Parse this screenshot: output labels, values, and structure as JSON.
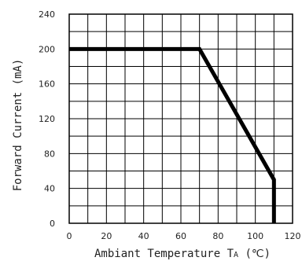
{
  "chart_data": {
    "type": "line",
    "xlabel": "Ambiant Temperature T",
    "xlabel_subscript": "A",
    "xlabel_unit": " (℃)",
    "ylabel": "Forward Current (mA)",
    "xlim": [
      0,
      120
    ],
    "ylim": [
      0,
      240
    ],
    "x_ticks": [
      0,
      20,
      40,
      60,
      80,
      100,
      120
    ],
    "y_ticks": [
      0,
      40,
      80,
      120,
      160,
      200,
      240
    ],
    "x_tick_labels": [
      "0",
      "20",
      "40",
      "60",
      "80",
      "100",
      "120"
    ],
    "y_tick_labels": [
      "0",
      "40",
      "80",
      "120",
      "160",
      "200",
      "240"
    ],
    "grid": true,
    "grid_x_step": 10,
    "grid_y_step": 20,
    "series": [
      {
        "points": [
          {
            "x": 0,
            "y": 200
          },
          {
            "x": 70,
            "y": 200
          },
          {
            "x": 110,
            "y": 50
          },
          {
            "x": 110,
            "y": 0
          }
        ]
      }
    ],
    "colors": {
      "line": "#000000",
      "grid": "#000000",
      "text": "#222222"
    }
  }
}
